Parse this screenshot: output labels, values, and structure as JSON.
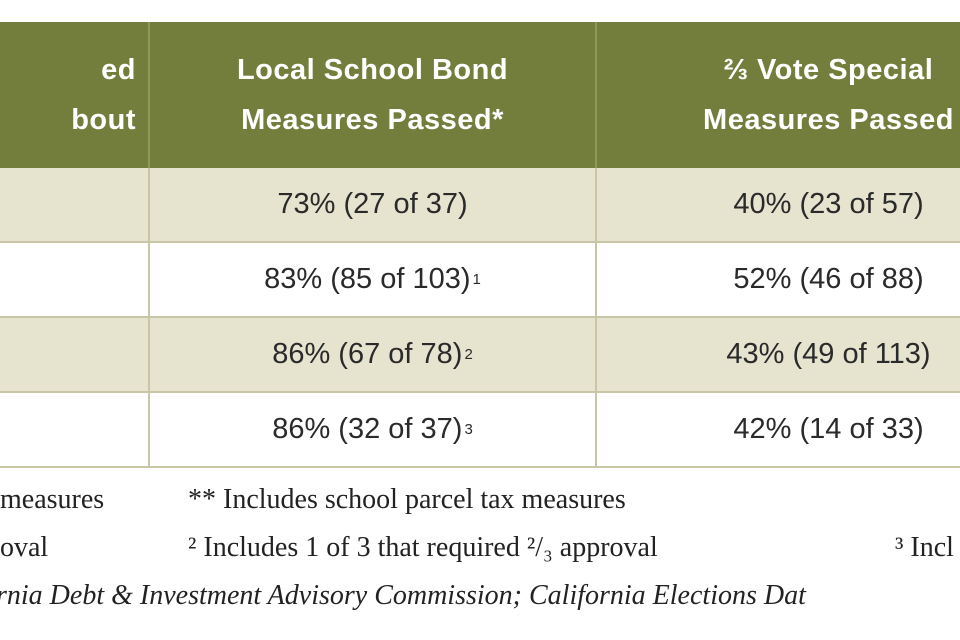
{
  "table": {
    "header": [
      [
        "ed",
        "bout"
      ],
      [
        "Local School Bond",
        "Measures Passed*"
      ],
      [
        "⅔ Vote Special",
        "Measures Passed"
      ]
    ],
    "rows": [
      {
        "bond": "73% (27 of 37)",
        "note": null,
        "special": "40% (23 of 57)"
      },
      {
        "bond": "83% (85 of 103)",
        "note": "1",
        "special": "52% (46 of 88)"
      },
      {
        "bond": "86% (67 of 78)",
        "note": "2",
        "special": "43% (49 of 113)"
      },
      {
        "bond": "86% (32 of 37)",
        "note": "3",
        "special": "42% (14 of 33)"
      }
    ]
  },
  "footnotes": {
    "line1": [
      "measures",
      "** Includes school parcel tax measures"
    ],
    "line2": [
      "oval",
      "² Includes 1 of 3 that required ²/₃ approval",
      "³ Incl"
    ],
    "source": "rnia Debt & Investment Advisory Commission; California Elections Dat"
  }
}
